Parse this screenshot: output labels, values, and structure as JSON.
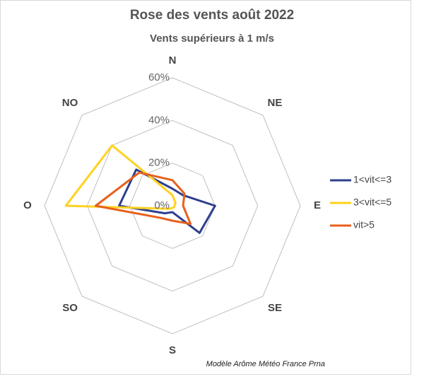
{
  "chart_data": {
    "type": "radar",
    "title": "Rose des vents août 2022",
    "subtitle": "Vents supérieurs à 1 m/s",
    "categories": [
      "N",
      "NE",
      "E",
      "SE",
      "S",
      "SO",
      "O",
      "NO"
    ],
    "series": [
      {
        "name": "1<vit<=3",
        "color": "#2e3f8f",
        "values": [
          8,
          7,
          20,
          18,
          3,
          5,
          25,
          24
        ]
      },
      {
        "name": "3<vit<=5",
        "color": "#ffd21f",
        "values": [
          5,
          2,
          1,
          1,
          1,
          2,
          50,
          40
        ]
      },
      {
        "name": "vit>5",
        "color": "#e8601c",
        "values": [
          12,
          8,
          5,
          12,
          7,
          8,
          36,
          22
        ]
      }
    ],
    "rlim": [
      0,
      60
    ],
    "rticks": [
      {
        "value": 0,
        "label": "0%"
      },
      {
        "value": 20,
        "label": "20%"
      },
      {
        "value": 40,
        "label": "40%"
      },
      {
        "value": 60,
        "label": "60%"
      }
    ],
    "legend": "right",
    "annotation": "Modèle Arôme Météo France Prna"
  }
}
